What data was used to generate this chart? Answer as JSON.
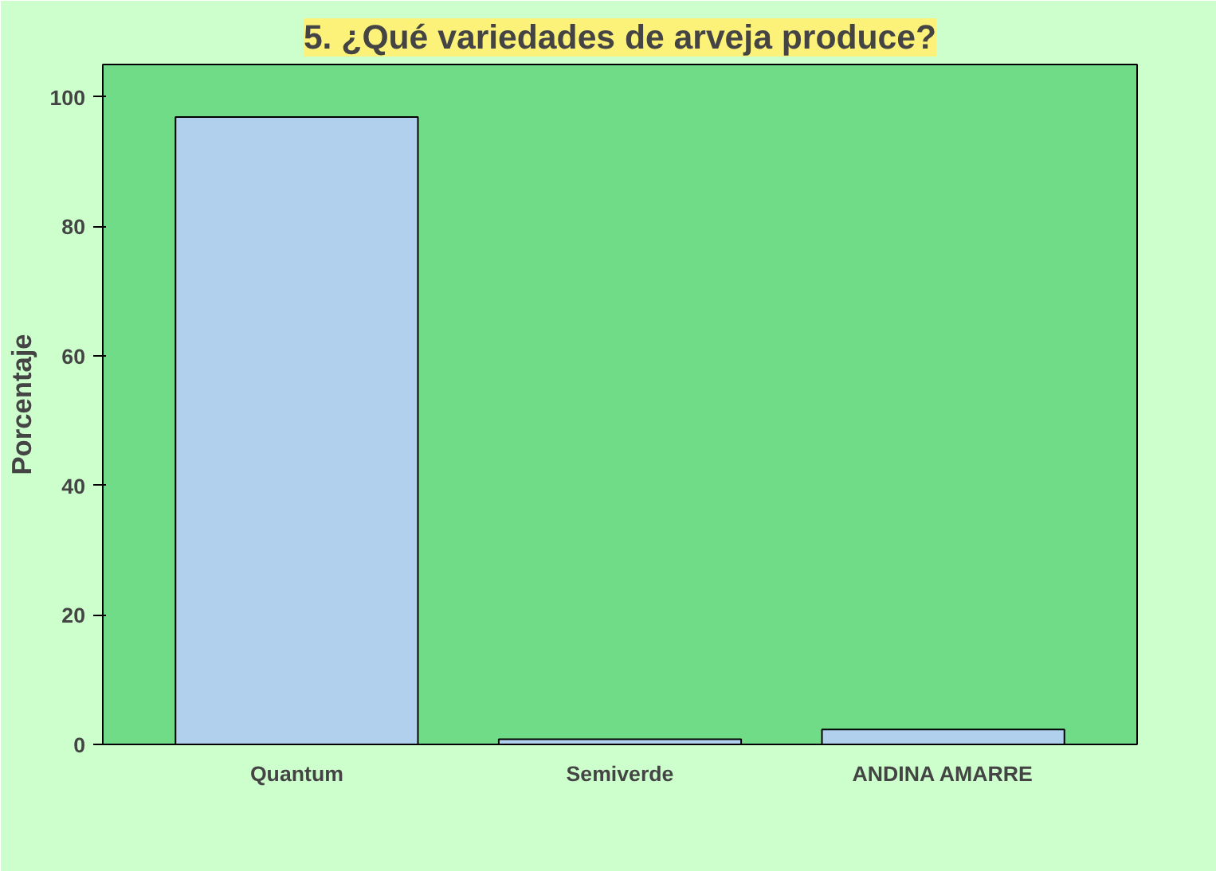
{
  "chart_data": {
    "type": "bar",
    "title": "5. ¿Qué variedades de arveja produce?",
    "ylabel": "Porcentaje",
    "categories": [
      "Quantum",
      "Semiverde",
      "ANDINA AMARRE"
    ],
    "values": [
      96.9,
      0.8,
      2.3
    ],
    "color": "#b0d0ee",
    "ylim": [
      0,
      105
    ],
    "yticks": [
      0,
      20,
      40,
      60,
      80,
      100
    ],
    "grid": false
  }
}
